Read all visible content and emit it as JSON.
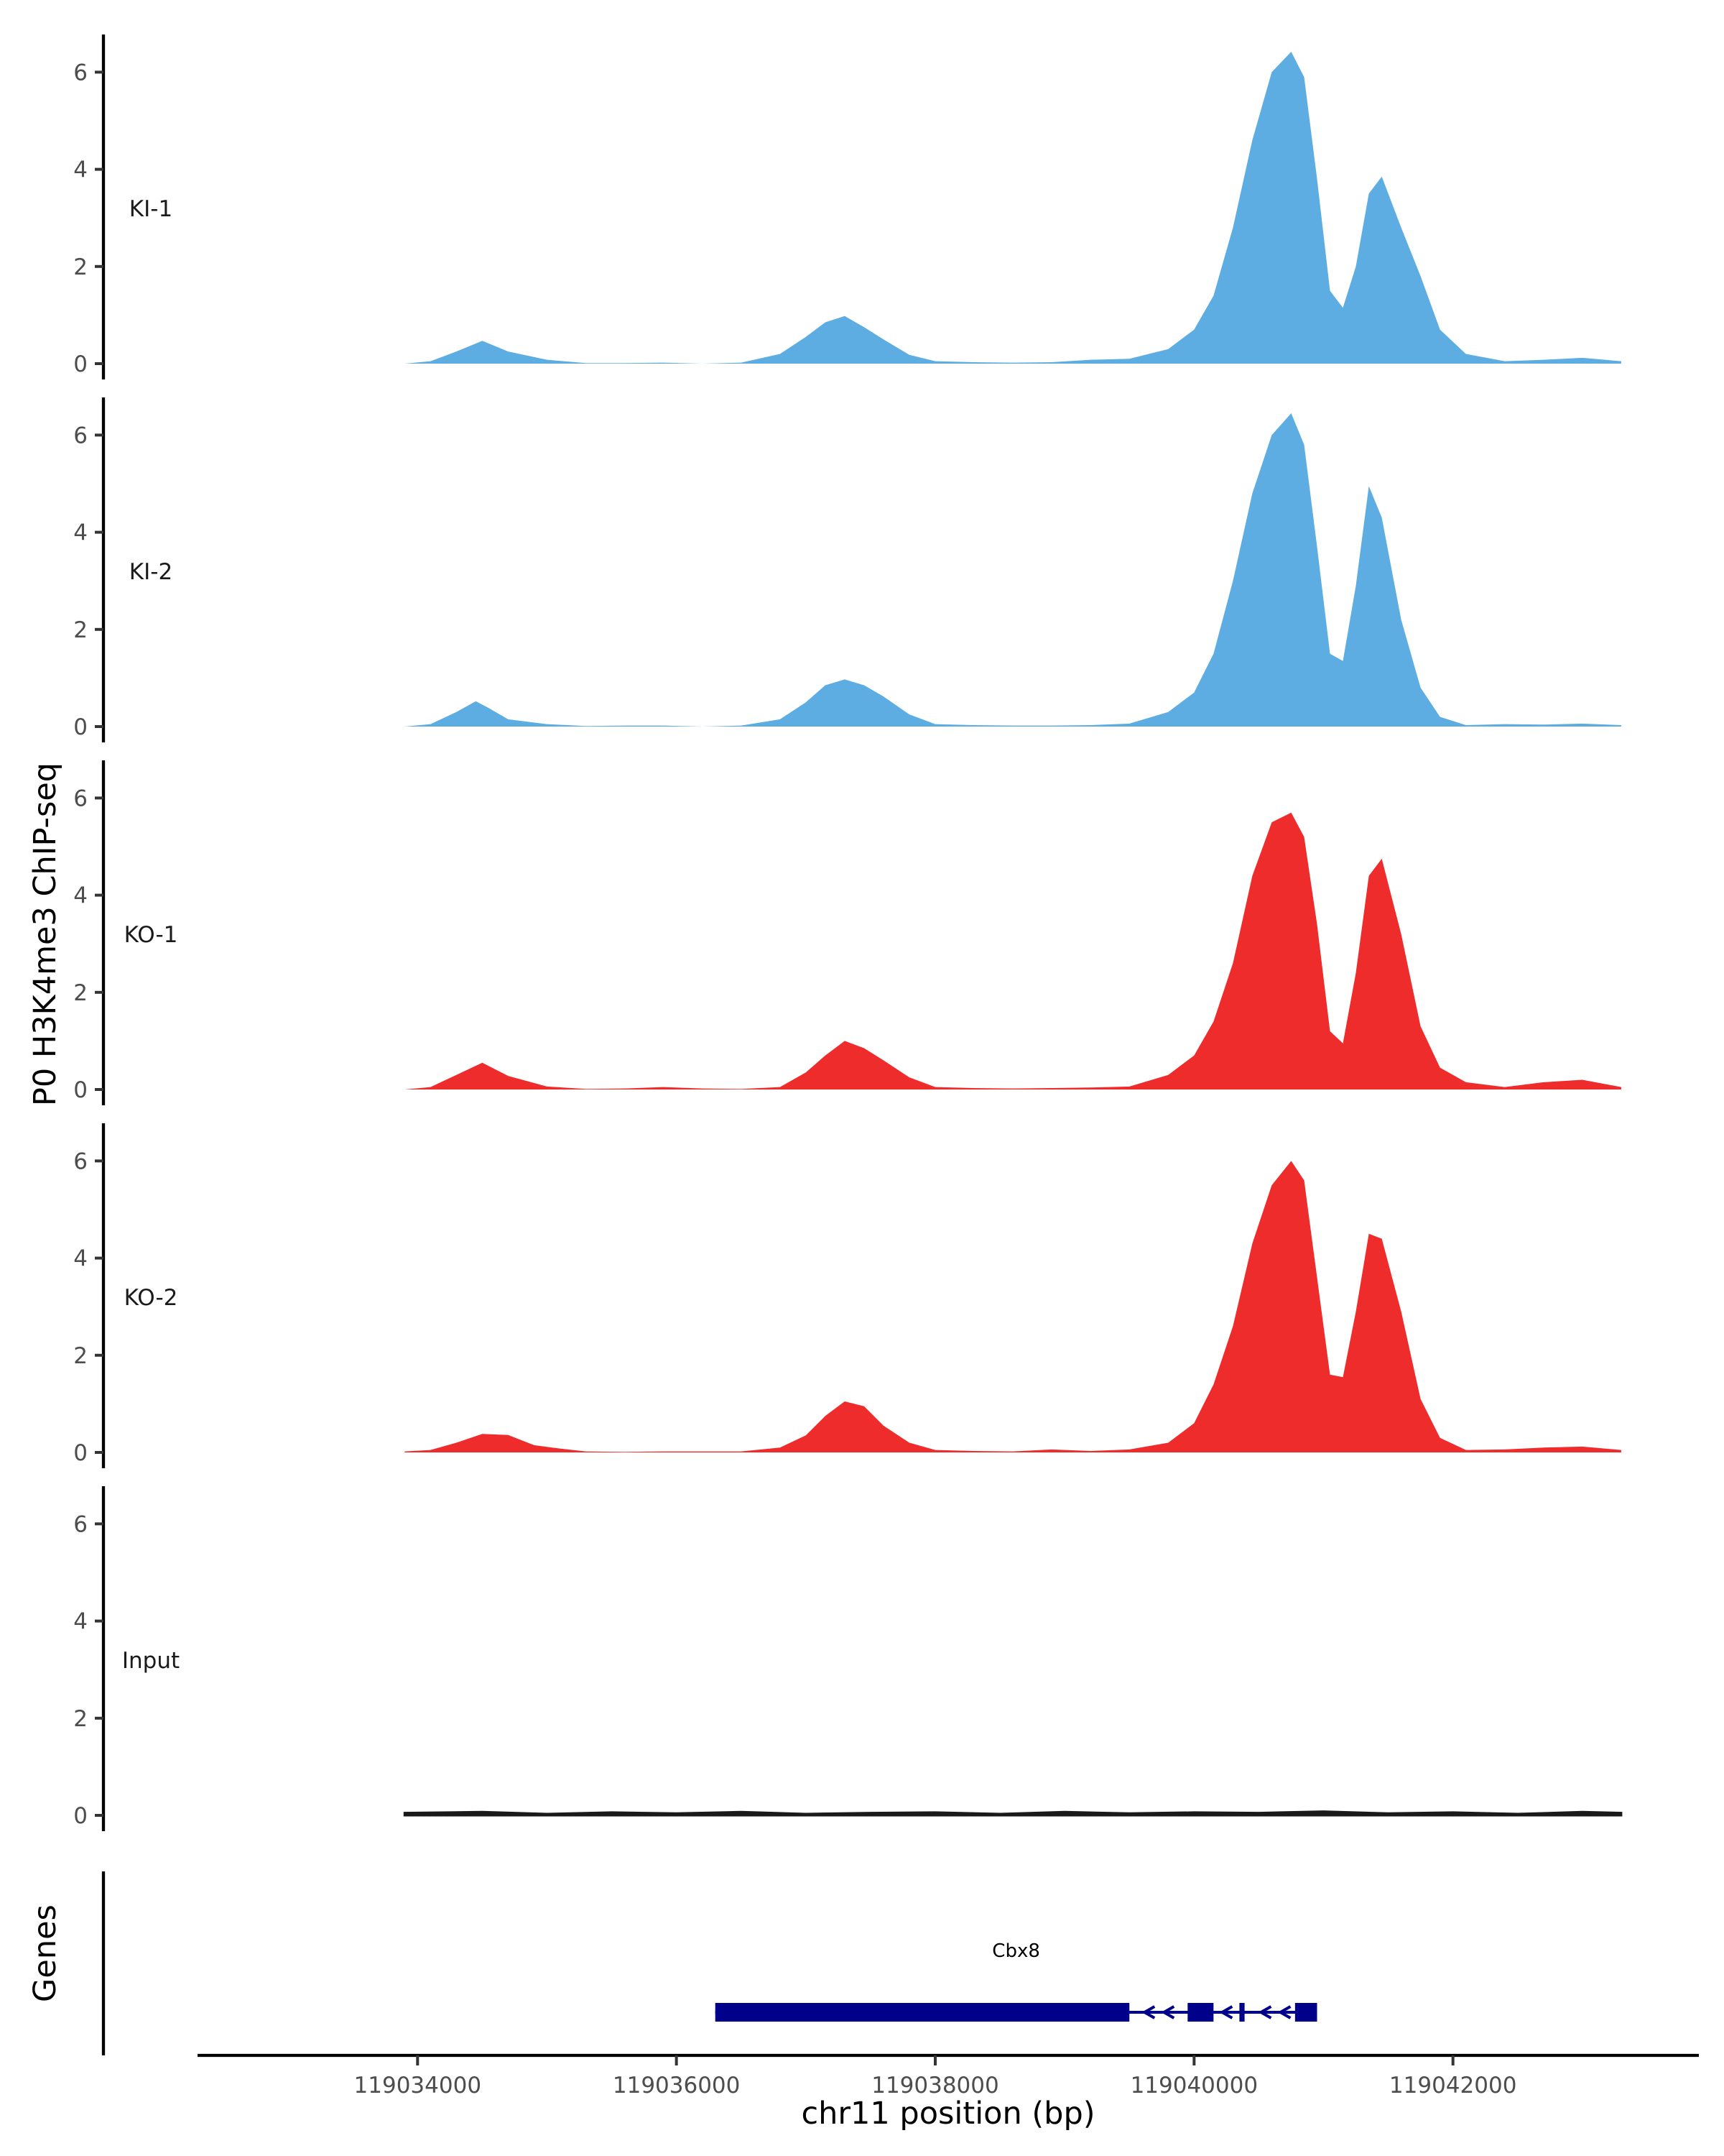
{
  "chart_data": {
    "type": "area",
    "ylabel": "P0 H3K4me3 ChIP-seq",
    "xlabel": "chr11 position (bp)",
    "ylim": [
      0,
      6.7
    ],
    "yticks": [
      0,
      2,
      4,
      6
    ],
    "xlim": [
      119032300,
      119043900
    ],
    "xticks": [
      119034000,
      119036000,
      119038000,
      119040000,
      119042000
    ],
    "xtick_labels": [
      "119034000",
      "119036000",
      119038000,
      "119040000",
      "119042000"
    ],
    "grid": false,
    "colors": {
      "KI": "#5dade2",
      "KO": "#ee2c2c",
      "Input": "#1a1a1a",
      "gene": "#00008b"
    },
    "series": [
      {
        "name": "KI-1",
        "color": "#5dade2",
        "x": [
          119033900,
          119034100,
          119034300,
          119034500,
          119034700,
          119035000,
          119035300,
          119035600,
          119035900,
          119036200,
          119036500,
          119036800,
          119037000,
          119037150,
          119037300,
          119037450,
          119037600,
          119037800,
          119038000,
          119038300,
          119038600,
          119038900,
          119039200,
          119039500,
          119039800,
          119040000,
          119040150,
          119040300,
          119040450,
          119040600,
          119040750,
          119040850,
          119040950,
          119041050,
          119041150,
          119041250,
          119041350,
          119041450,
          119041600,
          119041750,
          119041900,
          119042100,
          119042400,
          119042700,
          119043000,
          119043300
        ],
        "values": [
          0.0,
          0.05,
          0.25,
          0.47,
          0.25,
          0.08,
          0.01,
          0.01,
          0.02,
          0.0,
          0.02,
          0.2,
          0.55,
          0.85,
          0.98,
          0.75,
          0.5,
          0.18,
          0.05,
          0.03,
          0.02,
          0.03,
          0.08,
          0.1,
          0.3,
          0.7,
          1.4,
          2.8,
          4.6,
          6.0,
          6.42,
          5.9,
          3.8,
          1.5,
          1.15,
          2.0,
          3.5,
          3.85,
          2.8,
          1.8,
          0.7,
          0.2,
          0.05,
          0.08,
          0.12,
          0.05
        ]
      },
      {
        "name": "KI-2",
        "color": "#5dade2",
        "x": [
          119033900,
          119034100,
          119034300,
          119034450,
          119034550,
          119034700,
          119035000,
          119035300,
          119035600,
          119035900,
          119036200,
          119036500,
          119036800,
          119037000,
          119037150,
          119037300,
          119037450,
          119037600,
          119037800,
          119038000,
          119038300,
          119038600,
          119038900,
          119039200,
          119039500,
          119039800,
          119040000,
          119040150,
          119040300,
          119040450,
          119040600,
          119040750,
          119040850,
          119040950,
          119041050,
          119041150,
          119041250,
          119041350,
          119041450,
          119041600,
          119041750,
          119041900,
          119042100,
          119042400,
          119042700,
          119043000,
          119043300
        ],
        "values": [
          0.0,
          0.05,
          0.3,
          0.52,
          0.38,
          0.15,
          0.05,
          0.01,
          0.02,
          0.02,
          0.0,
          0.02,
          0.15,
          0.5,
          0.85,
          0.97,
          0.85,
          0.62,
          0.25,
          0.05,
          0.03,
          0.02,
          0.02,
          0.03,
          0.06,
          0.3,
          0.7,
          1.5,
          3.0,
          4.8,
          6.0,
          6.45,
          5.8,
          3.7,
          1.5,
          1.35,
          2.9,
          4.95,
          4.3,
          2.2,
          0.8,
          0.2,
          0.03,
          0.05,
          0.04,
          0.06,
          0.03
        ]
      },
      {
        "name": "KO-1",
        "color": "#ee2c2c",
        "x": [
          119033900,
          119034100,
          119034300,
          119034500,
          119034700,
          119035000,
          119035300,
          119035600,
          119035900,
          119036200,
          119036500,
          119036800,
          119037000,
          119037150,
          119037300,
          119037450,
          119037600,
          119037800,
          119038000,
          119038300,
          119038600,
          119038900,
          119039200,
          119039500,
          119039800,
          119040000,
          119040150,
          119040300,
          119040450,
          119040600,
          119040750,
          119040850,
          119040950,
          119041050,
          119041150,
          119041250,
          119041350,
          119041450,
          119041600,
          119041750,
          119041900,
          119042100,
          119042400,
          119042700,
          119043000,
          119043300
        ],
        "values": [
          0.0,
          0.05,
          0.3,
          0.55,
          0.28,
          0.06,
          0.01,
          0.02,
          0.05,
          0.02,
          0.01,
          0.05,
          0.35,
          0.7,
          1.0,
          0.85,
          0.6,
          0.25,
          0.05,
          0.03,
          0.02,
          0.03,
          0.04,
          0.06,
          0.3,
          0.7,
          1.4,
          2.6,
          4.4,
          5.5,
          5.7,
          5.2,
          3.4,
          1.2,
          0.95,
          2.4,
          4.4,
          4.75,
          3.2,
          1.3,
          0.45,
          0.15,
          0.05,
          0.15,
          0.2,
          0.05
        ]
      },
      {
        "name": "KO-2",
        "color": "#ee2c2c",
        "x": [
          119033900,
          119034100,
          119034300,
          119034500,
          119034700,
          119034900,
          119035100,
          119035300,
          119035600,
          119035900,
          119036200,
          119036500,
          119036800,
          119037000,
          119037150,
          119037300,
          119037450,
          119037600,
          119037800,
          119038000,
          119038300,
          119038600,
          119038900,
          119039200,
          119039500,
          119039800,
          119040000,
          119040150,
          119040300,
          119040450,
          119040600,
          119040750,
          119040850,
          119040950,
          119041050,
          119041150,
          119041250,
          119041350,
          119041450,
          119041600,
          119041750,
          119041900,
          119042100,
          119042400,
          119042700,
          119043000,
          119043300
        ],
        "values": [
          0.02,
          0.05,
          0.2,
          0.38,
          0.36,
          0.15,
          0.08,
          0.02,
          0.01,
          0.02,
          0.02,
          0.02,
          0.1,
          0.35,
          0.75,
          1.05,
          0.95,
          0.55,
          0.2,
          0.05,
          0.03,
          0.02,
          0.06,
          0.03,
          0.06,
          0.2,
          0.6,
          1.4,
          2.6,
          4.3,
          5.5,
          6.0,
          5.6,
          3.6,
          1.6,
          1.55,
          2.9,
          4.5,
          4.4,
          2.9,
          1.1,
          0.3,
          0.05,
          0.06,
          0.1,
          0.12,
          0.05
        ]
      },
      {
        "name": "Input",
        "color": "#1a1a1a",
        "x": [
          119033900,
          119034500,
          119035000,
          119035500,
          119036000,
          119036500,
          119037000,
          119037500,
          119038000,
          119038500,
          119039000,
          119039500,
          119040000,
          119040500,
          119041000,
          119041500,
          119042000,
          119042500,
          119043000,
          119043300
        ],
        "values": [
          0.05,
          0.07,
          0.03,
          0.06,
          0.04,
          0.07,
          0.03,
          0.05,
          0.06,
          0.03,
          0.07,
          0.04,
          0.06,
          0.05,
          0.08,
          0.04,
          0.06,
          0.03,
          0.07,
          0.05
        ]
      }
    ],
    "genes_track": {
      "label": "Genes",
      "gene": "Cbx8",
      "span": [
        119036300,
        119040950
      ],
      "strand": "-",
      "blocks": [
        [
          119036300,
          119039500
        ],
        [
          119039950,
          119040150
        ],
        [
          119040350,
          119040390
        ],
        [
          119040780,
          119040950
        ]
      ]
    }
  }
}
